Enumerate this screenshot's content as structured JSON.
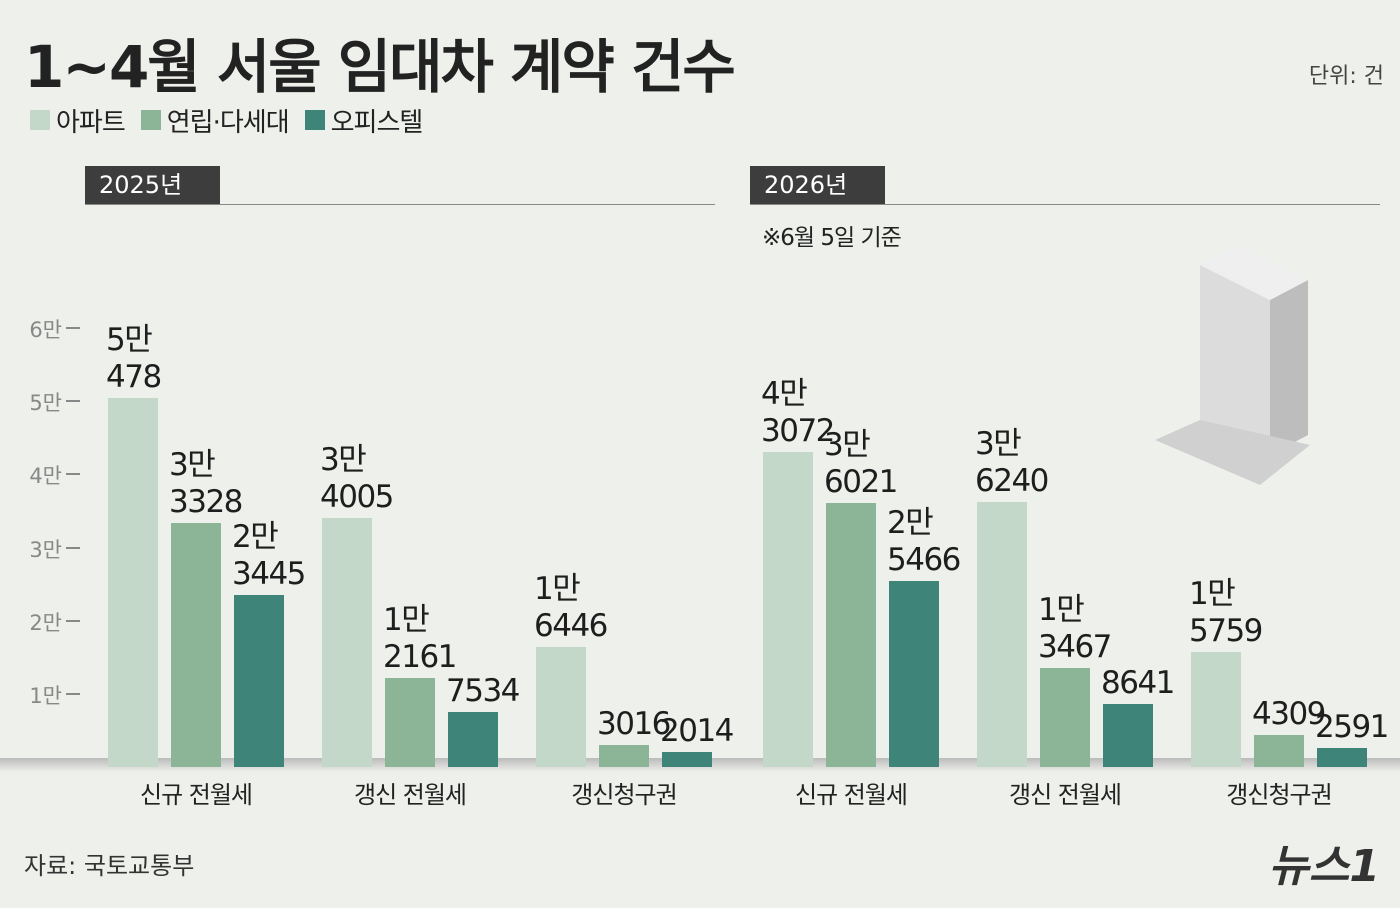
{
  "header": {
    "title": "1~4월 서울 임대차 계약 건수",
    "unit": "단위: 건"
  },
  "chart_data": {
    "type": "bar",
    "legend": [
      {
        "name": "아파트",
        "color": "#c4d8c9"
      },
      {
        "name": "연립·다세대",
        "color": "#8bb596"
      },
      {
        "name": "오피스텔",
        "color": "#3f8479"
      }
    ],
    "ylim": [
      0,
      60000
    ],
    "yticks": [
      {
        "value": 10000,
        "label": "1만"
      },
      {
        "value": 20000,
        "label": "2만"
      },
      {
        "value": 30000,
        "label": "3만"
      },
      {
        "value": 40000,
        "label": "4만"
      },
      {
        "value": 50000,
        "label": "5만"
      },
      {
        "value": 60000,
        "label": "6만"
      }
    ],
    "panels": [
      {
        "title": "2025년",
        "categories": [
          "신규 전월세",
          "갱신 전월세",
          "갱신청구권"
        ],
        "series": [
          {
            "values": [
              50478,
              34005,
              16446
            ],
            "value_labels": [
              "5만\n478",
              "3만\n4005",
              "1만\n6446"
            ]
          },
          {
            "values": [
              33328,
              12161,
              3016
            ],
            "value_labels": [
              "3만\n3328",
              "1만\n2161",
              "3016"
            ]
          },
          {
            "values": [
              23445,
              7534,
              2014
            ],
            "value_labels": [
              "2만\n3445",
              "7534",
              "2014"
            ]
          }
        ]
      },
      {
        "title": "2026년",
        "note": "※6월 5일 기준",
        "categories": [
          "신규 전월세",
          "갱신 전월세",
          "갱신청구권"
        ],
        "series": [
          {
            "values": [
              43072,
              36240,
              15759
            ],
            "value_labels": [
              "4만\n3072",
              "3만\n6240",
              "1만\n5759"
            ]
          },
          {
            "values": [
              36021,
              13467,
              4309
            ],
            "value_labels": [
              "3만\n6021",
              "1만\n3467",
              "4309"
            ]
          },
          {
            "values": [
              25466,
              8641,
              2591
            ],
            "value_labels": [
              "2만\n5466",
              "8641",
              "2591"
            ]
          }
        ]
      }
    ]
  },
  "source": "자료: 국토교통부",
  "brand": "뉴스1"
}
